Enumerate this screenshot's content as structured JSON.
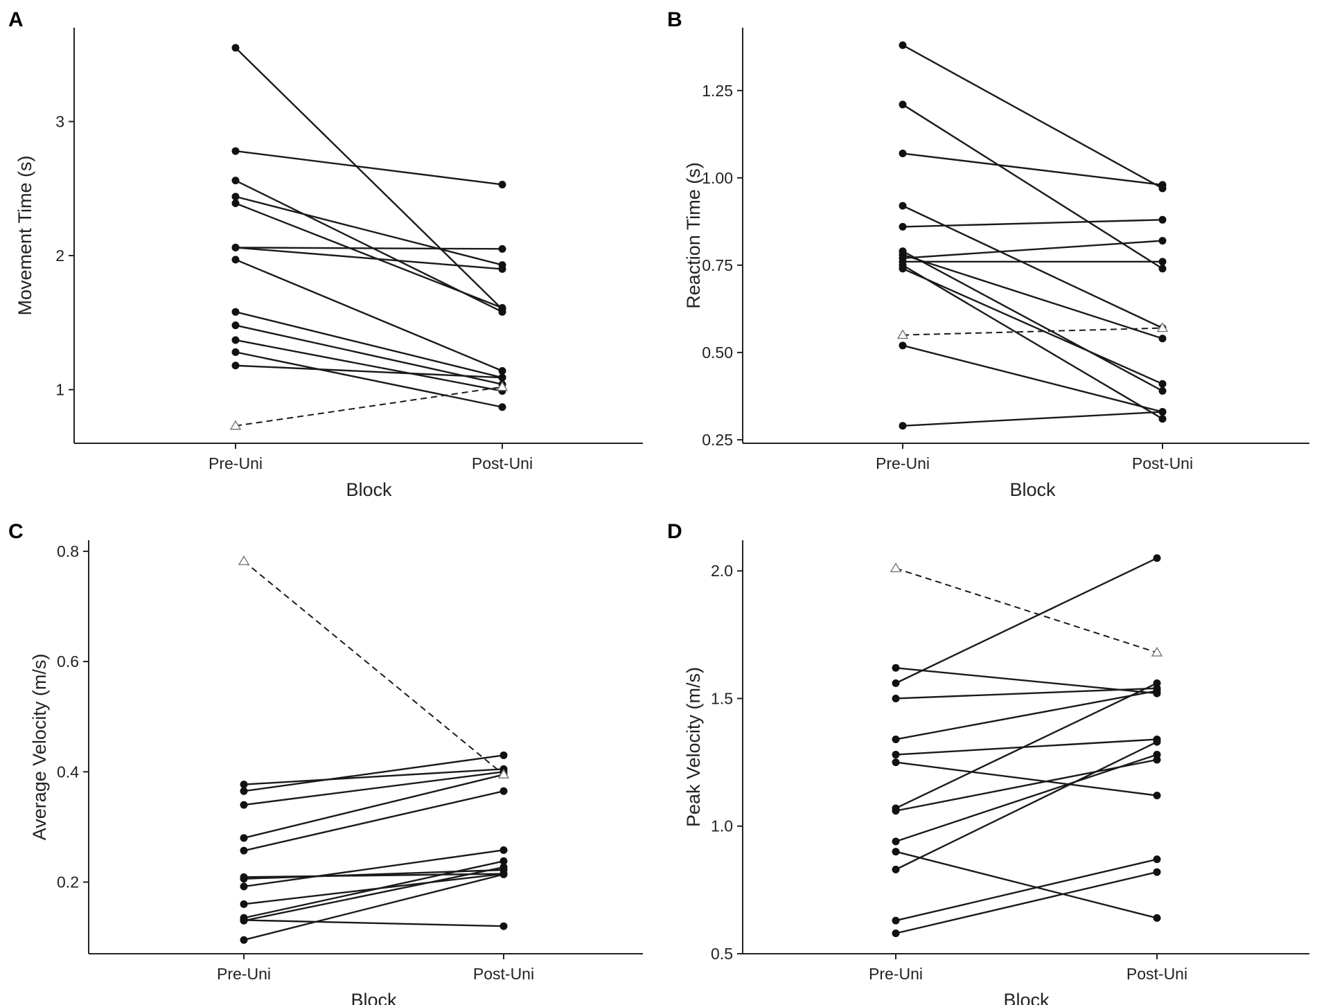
{
  "chart_data": [
    {
      "type": "line",
      "panel": "A",
      "xlabel": "Block",
      "ylabel": "Movement Time (s)",
      "categories": [
        "Pre-Uni",
        "Post-Uni"
      ],
      "ylim": [
        0.6,
        3.7
      ],
      "yticks": [
        1,
        2,
        3
      ],
      "ytick_labels": [
        "1",
        "2",
        "3"
      ],
      "series": [
        {
          "values": [
            3.55,
            1.6
          ]
        },
        {
          "values": [
            2.78,
            2.53
          ]
        },
        {
          "values": [
            2.56,
            1.58
          ]
        },
        {
          "values": [
            2.44,
            1.93
          ]
        },
        {
          "values": [
            2.39,
            1.61
          ]
        },
        {
          "values": [
            2.06,
            2.05
          ]
        },
        {
          "values": [
            2.06,
            1.9
          ]
        },
        {
          "values": [
            1.97,
            1.14
          ]
        },
        {
          "values": [
            1.58,
            1.09
          ]
        },
        {
          "values": [
            1.48,
            1.04
          ]
        },
        {
          "values": [
            1.37,
            0.99
          ]
        },
        {
          "values": [
            1.28,
            0.87
          ]
        },
        {
          "values": [
            1.18,
            1.09
          ]
        },
        {
          "values": [
            0.73,
            1.02
          ],
          "outlier": true
        }
      ]
    },
    {
      "type": "line",
      "panel": "B",
      "xlabel": "Block",
      "ylabel": "Reaction Time (s)",
      "categories": [
        "Pre-Uni",
        "Post-Uni"
      ],
      "ylim": [
        0.24,
        1.43
      ],
      "yticks": [
        0.25,
        0.5,
        0.75,
        1.0,
        1.25
      ],
      "ytick_labels": [
        "0.25",
        "0.50",
        "0.75",
        "1.00",
        "1.25"
      ],
      "series": [
        {
          "values": [
            1.38,
            0.97
          ]
        },
        {
          "values": [
            1.21,
            0.74
          ]
        },
        {
          "values": [
            1.07,
            0.98
          ]
        },
        {
          "values": [
            0.92,
            0.57
          ]
        },
        {
          "values": [
            0.86,
            0.88
          ]
        },
        {
          "values": [
            0.79,
            0.39
          ]
        },
        {
          "values": [
            0.78,
            0.54
          ]
        },
        {
          "values": [
            0.77,
            0.82
          ]
        },
        {
          "values": [
            0.76,
            0.76
          ]
        },
        {
          "values": [
            0.75,
            0.31
          ]
        },
        {
          "values": [
            0.74,
            0.41
          ]
        },
        {
          "values": [
            0.52,
            0.33
          ]
        },
        {
          "values": [
            0.29,
            0.33
          ]
        },
        {
          "values": [
            0.55,
            0.57
          ],
          "outlier": true
        }
      ]
    },
    {
      "type": "line",
      "panel": "C",
      "xlabel": "Block",
      "ylabel": "Average Velocity (m/s)",
      "categories": [
        "Pre-Uni",
        "Post-Uni"
      ],
      "ylim": [
        0.07,
        0.82
      ],
      "yticks": [
        0.2,
        0.4,
        0.6,
        0.8
      ],
      "ytick_labels": [
        "0.2",
        "0.4",
        "0.6",
        "0.8"
      ],
      "series": [
        {
          "values": [
            0.377,
            0.405
          ]
        },
        {
          "values": [
            0.365,
            0.43
          ]
        },
        {
          "values": [
            0.34,
            0.4
          ]
        },
        {
          "values": [
            0.28,
            0.395
          ]
        },
        {
          "values": [
            0.257,
            0.365
          ]
        },
        {
          "values": [
            0.209,
            0.215
          ]
        },
        {
          "values": [
            0.206,
            0.222
          ]
        },
        {
          "values": [
            0.192,
            0.258
          ]
        },
        {
          "values": [
            0.16,
            0.215
          ]
        },
        {
          "values": [
            0.135,
            0.238
          ]
        },
        {
          "values": [
            0.131,
            0.12
          ]
        },
        {
          "values": [
            0.13,
            0.227
          ]
        },
        {
          "values": [
            0.095,
            0.214
          ]
        },
        {
          "values": [
            0.782,
            0.395
          ],
          "outlier": true
        }
      ]
    },
    {
      "type": "line",
      "panel": "D",
      "xlabel": "Block",
      "ylabel": "Peak Velocity (m/s)",
      "categories": [
        "Pre-Uni",
        "Post-Uni"
      ],
      "ylim": [
        0.5,
        2.12
      ],
      "yticks": [
        0.5,
        1.0,
        1.5,
        2.0
      ],
      "ytick_labels": [
        "0.5",
        "1.0",
        "1.5",
        "2.0"
      ],
      "series": [
        {
          "values": [
            1.62,
            1.52
          ]
        },
        {
          "values": [
            1.56,
            2.05
          ]
        },
        {
          "values": [
            1.5,
            1.54
          ]
        },
        {
          "values": [
            1.34,
            1.53
          ]
        },
        {
          "values": [
            1.28,
            1.34
          ]
        },
        {
          "values": [
            1.25,
            1.12
          ]
        },
        {
          "values": [
            1.07,
            1.56
          ]
        },
        {
          "values": [
            1.06,
            1.26
          ]
        },
        {
          "values": [
            0.94,
            1.28
          ]
        },
        {
          "values": [
            0.9,
            0.64
          ]
        },
        {
          "values": [
            0.83,
            1.33
          ]
        },
        {
          "values": [
            0.63,
            0.87
          ]
        },
        {
          "values": [
            0.58,
            0.82
          ]
        },
        {
          "values": [
            2.01,
            1.68
          ],
          "outlier": true
        }
      ]
    }
  ]
}
